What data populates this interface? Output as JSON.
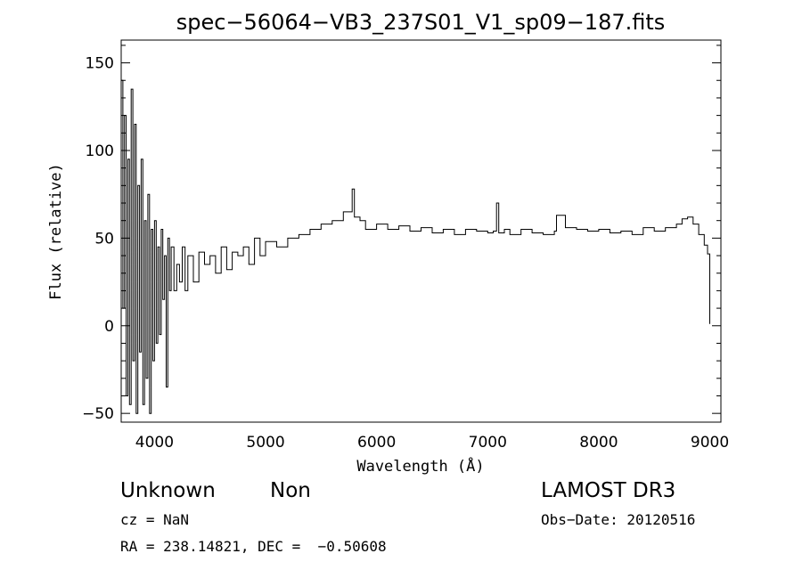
{
  "chart_data": {
    "type": "line",
    "title": "spec−56064−VB3_237S01_V1_sp09−187.fits",
    "xlabel": "Wavelength (Å)",
    "ylabel": "Flux (relative)",
    "xlim": [
      3700,
      9100
    ],
    "ylim": [
      -55,
      163
    ],
    "xticks": [
      4000,
      5000,
      6000,
      7000,
      8000,
      9000
    ],
    "yticks": [
      -50,
      0,
      50,
      100,
      150
    ],
    "ytick_labels": [
      "−50",
      "0",
      "50",
      "100",
      "150"
    ],
    "grid": false,
    "series": [
      {
        "color": "#000000",
        "x": [
          3700,
          3715,
          3730,
          3745,
          3760,
          3775,
          3790,
          3805,
          3820,
          3835,
          3850,
          3865,
          3880,
          3895,
          3910,
          3925,
          3940,
          3955,
          3970,
          3985,
          4000,
          4015,
          4030,
          4045,
          4060,
          4075,
          4090,
          4105,
          4120,
          4135,
          4150,
          4175,
          4200,
          4225,
          4250,
          4275,
          4300,
          4350,
          4400,
          4450,
          4500,
          4550,
          4600,
          4650,
          4700,
          4750,
          4800,
          4850,
          4900,
          4950,
          5000,
          5100,
          5200,
          5300,
          5400,
          5500,
          5600,
          5700,
          5780,
          5800,
          5850,
          5900,
          6000,
          6100,
          6200,
          6300,
          6400,
          6500,
          6600,
          6700,
          6800,
          6900,
          7000,
          7050,
          7080,
          7100,
          7150,
          7200,
          7300,
          7400,
          7500,
          7600,
          7620,
          7700,
          7800,
          7900,
          8000,
          8100,
          8200,
          8300,
          8400,
          8500,
          8600,
          8700,
          8750,
          8800,
          8850,
          8900,
          8950,
          8980,
          9000
        ],
        "y": [
          140,
          10,
          120,
          -40,
          95,
          -45,
          135,
          -20,
          115,
          -50,
          80,
          -15,
          95,
          -45,
          60,
          -30,
          75,
          -50,
          55,
          -20,
          60,
          -10,
          45,
          -5,
          55,
          15,
          40,
          -35,
          50,
          20,
          45,
          20,
          35,
          25,
          45,
          20,
          40,
          25,
          42,
          35,
          40,
          30,
          45,
          32,
          42,
          40,
          45,
          35,
          50,
          40,
          48,
          45,
          50,
          52,
          55,
          58,
          60,
          65,
          78,
          62,
          60,
          55,
          58,
          55,
          57,
          54,
          56,
          53,
          55,
          52,
          55,
          54,
          53,
          54,
          70,
          53,
          55,
          52,
          55,
          53,
          52,
          54,
          63,
          56,
          55,
          54,
          55,
          53,
          54,
          52,
          56,
          54,
          56,
          58,
          61,
          62,
          58,
          52,
          46,
          41,
          1
        ]
      }
    ]
  },
  "info": {
    "class_label": "Unknown",
    "subclass_label": "Non",
    "survey": "LAMOST DR3",
    "cz": "cz = NaN",
    "obs_date": "Obs−Date: 20120516",
    "coords": "RA = 238.14821, DEC =  −0.50608"
  }
}
